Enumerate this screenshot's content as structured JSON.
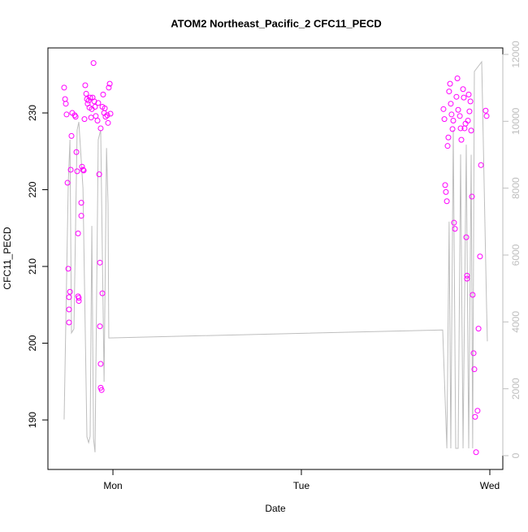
{
  "chart_data": {
    "type": "scatter",
    "title": "ATOM2 Northeast_Pacific_2 CFC11_PECD",
    "x_label": "Date",
    "y_label": "CFC11_PECD",
    "xlim": [
      0.655,
      3.069
    ],
    "ylim": [
      183.55,
      238.47
    ],
    "y2lim": [
      -413,
      12194
    ],
    "xticks": [
      {
        "value": 1,
        "label": "Mon"
      },
      {
        "value": 2,
        "label": "Tue"
      },
      {
        "value": 3,
        "label": "Wed"
      }
    ],
    "yticks": [
      190,
      200,
      210,
      220,
      230
    ],
    "y2ticks": [
      0,
      2000,
      4000,
      6000,
      8000,
      10000,
      12000
    ],
    "series": [
      {
        "type": "scatter",
        "color": "#ff00ff",
        "x": [
          0.741,
          0.746,
          0.75,
          0.754,
          0.759,
          0.763,
          0.767,
          0.767,
          0.767,
          0.772,
          0.776,
          0.78,
          0.784,
          0.797,
          0.802,
          0.806,
          0.81,
          0.815,
          0.815,
          0.819,
          0.819,
          0.832,
          0.832,
          0.836,
          0.841,
          0.845,
          0.849,
          0.853,
          0.858,
          0.862,
          0.866,
          0.871,
          0.875,
          0.879,
          0.884,
          0.888,
          0.892,
          0.897,
          0.901,
          0.905,
          0.909,
          0.918,
          0.922,
          0.927,
          0.931,
          0.931,
          0.935,
          0.935,
          0.94,
          0.944,
          0.944,
          0.948,
          0.953,
          0.957,
          0.961,
          0.97,
          0.974,
          0.978,
          0.983,
          0.987,
          0.935,
          2.754,
          2.759,
          2.763,
          2.767,
          2.772,
          2.776,
          2.78,
          2.784,
          2.789,
          2.793,
          2.797,
          2.802,
          2.806,
          2.81,
          2.815,
          2.823,
          2.828,
          2.832,
          2.841,
          2.845,
          2.849,
          2.858,
          2.862,
          2.866,
          2.871,
          2.875,
          2.879,
          2.879,
          2.884,
          2.888,
          2.892,
          2.897,
          2.901,
          2.905,
          2.909,
          2.914,
          2.918,
          2.922,
          2.927,
          2.935,
          2.94,
          2.948,
          2.953,
          2.978,
          2.983
        ],
        "values": [
          233.3,
          231.8,
          231.2,
          229.8,
          220.9,
          209.7,
          204.4,
          206.0,
          202.7,
          206.7,
          222.6,
          227.0,
          230.0,
          229.7,
          229.5,
          224.9,
          222.4,
          214.3,
          206.1,
          205.5,
          205.9,
          216.6,
          218.3,
          223.0,
          222.6,
          222.5,
          229.2,
          233.6,
          232.5,
          231.8,
          231.2,
          231.6,
          230.7,
          232.0,
          229.4,
          230.5,
          232.0,
          236.5,
          231.5,
          230.8,
          229.6,
          229.0,
          231.3,
          222.0,
          210.5,
          202.2,
          197.3,
          194.2,
          193.9,
          206.5,
          230.8,
          232.4,
          230.0,
          230.6,
          229.5,
          229.7,
          228.7,
          233.3,
          233.8,
          229.9,
          228.0,
          230.5,
          229.2,
          220.6,
          219.7,
          218.5,
          225.7,
          226.8,
          232.8,
          233.8,
          231.2,
          229.8,
          227.9,
          229.0,
          215.7,
          214.9,
          232.1,
          234.5,
          230.4,
          229.6,
          228.0,
          226.5,
          233.1,
          232.0,
          228.0,
          228.6,
          213.8,
          208.8,
          208.4,
          229.0,
          232.4,
          230.2,
          231.5,
          227.7,
          219.1,
          206.3,
          198.7,
          196.6,
          190.4,
          185.8,
          191.2,
          201.9,
          211.3,
          223.2,
          230.3,
          229.6
        ]
      },
      {
        "type": "line",
        "axis": "y2",
        "color": "#bebebe",
        "x": [
          0.741,
          0.763,
          0.772,
          0.78,
          0.793,
          0.81,
          0.819,
          0.841,
          0.862,
          0.871,
          0.879,
          0.888,
          0.897,
          0.905,
          0.922,
          0.935,
          0.953,
          0.966,
          0.974,
          0.978,
          2.75,
          2.772,
          2.784,
          2.793,
          2.806,
          2.819,
          2.832,
          2.845,
          2.858,
          2.875,
          2.888,
          2.901,
          2.909,
          2.918,
          2.957,
          2.983,
          2.987
        ],
        "values": [
          1080,
          8160,
          9450,
          3670,
          3790,
          9740,
          9980,
          8000,
          560,
          390,
          580,
          6870,
          510,
          100,
          9450,
          9740,
          2210,
          9200,
          7510,
          3520,
          3760,
          220,
          7000,
          220,
          9740,
          220,
          220,
          9010,
          220,
          9300,
          220,
          9000,
          220,
          11490,
          11780,
          4400,
          3420
        ]
      }
    ]
  }
}
